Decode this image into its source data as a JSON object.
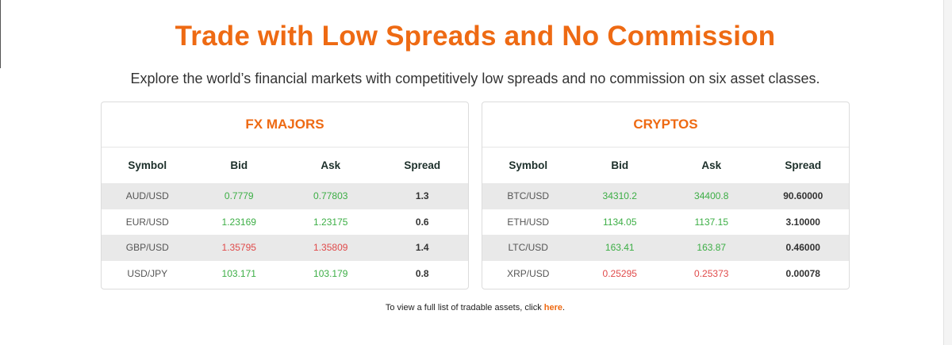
{
  "title": "Trade with Low Spreads and No Commission",
  "subtitle": "Explore the world’s financial markets with competitively low spreads and no commission on six asset classes.",
  "columns": {
    "symbol": "Symbol",
    "bid": "Bid",
    "ask": "Ask",
    "spread": "Spread"
  },
  "fx_majors": {
    "title": "FX MAJORS",
    "rows": [
      {
        "symbol": "AUD/USD",
        "bid": "0.7779",
        "ask": "0.77803",
        "spread": "1.3",
        "direction": "up"
      },
      {
        "symbol": "EUR/USD",
        "bid": "1.23169",
        "ask": "1.23175",
        "spread": "0.6",
        "direction": "up"
      },
      {
        "symbol": "GBP/USD",
        "bid": "1.35795",
        "ask": "1.35809",
        "spread": "1.4",
        "direction": "down"
      },
      {
        "symbol": "USD/JPY",
        "bid": "103.171",
        "ask": "103.179",
        "spread": "0.8",
        "direction": "up"
      }
    ]
  },
  "cryptos": {
    "title": "CRYPTOS",
    "rows": [
      {
        "symbol": "BTC/USD",
        "bid": "34310.2",
        "ask": "34400.8",
        "spread": "90.60000",
        "direction": "up"
      },
      {
        "symbol": "ETH/USD",
        "bid": "1134.05",
        "ask": "1137.15",
        "spread": "3.10000",
        "direction": "up"
      },
      {
        "symbol": "LTC/USD",
        "bid": "163.41",
        "ask": "163.87",
        "spread": "0.46000",
        "direction": "up"
      },
      {
        "symbol": "XRP/USD",
        "bid": "0.25295",
        "ask": "0.25373",
        "spread": "0.00078",
        "direction": "down"
      }
    ]
  },
  "footer": {
    "text": "To view a full list of tradable assets, click ",
    "link": "here",
    "suffix": "."
  },
  "colors": {
    "accent": "#ee6a13",
    "up": "#3cae45",
    "down": "#e04a4a"
  }
}
